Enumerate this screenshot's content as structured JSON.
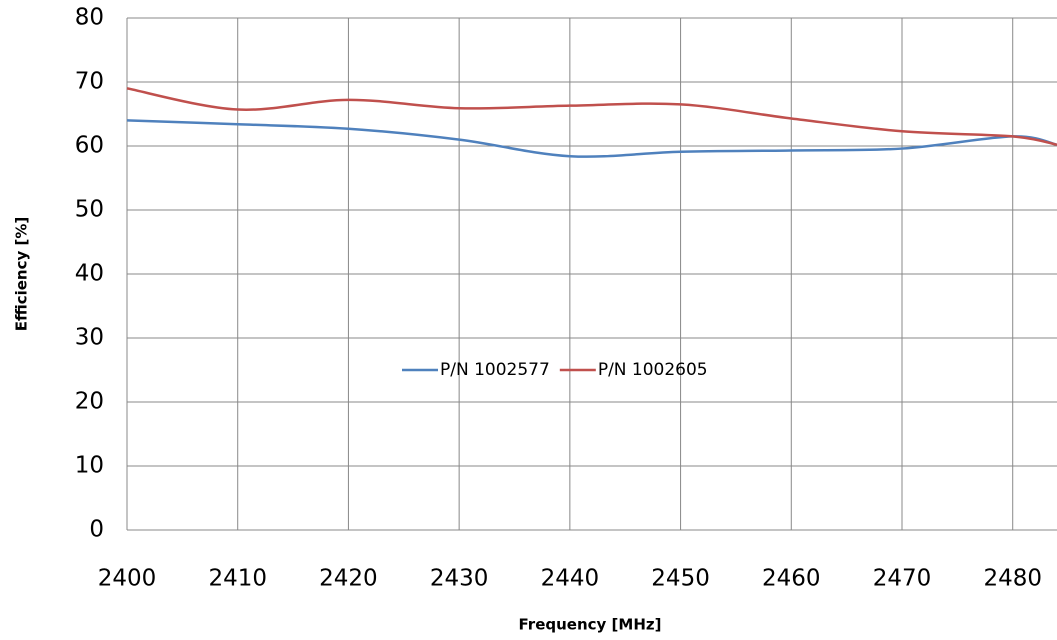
{
  "chart_data": {
    "type": "line",
    "xlabel": "Frequency [MHz]",
    "ylabel": "Efficiency [%]",
    "x": [
      2400,
      2410,
      2420,
      2430,
      2440,
      2450,
      2460,
      2470,
      2480,
      2484
    ],
    "series": [
      {
        "name": "P/N 1002577",
        "color": "#4f81bd",
        "values": [
          64,
          63.4,
          62.7,
          61,
          58.4,
          59.1,
          59.3,
          59.6,
          61.5,
          60.2
        ]
      },
      {
        "name": "P/N 1002605",
        "color": "#c0504d",
        "values": [
          69,
          65.7,
          67.2,
          65.9,
          66.3,
          66.5,
          64.3,
          62.3,
          61.5,
          60.2
        ]
      }
    ],
    "xlim": [
      2400,
      2484
    ],
    "ylim": [
      0,
      80
    ],
    "xticks": [
      2400,
      2410,
      2420,
      2430,
      2440,
      2450,
      2460,
      2470,
      2480
    ],
    "yticks": [
      0,
      10,
      20,
      30,
      40,
      50,
      60,
      70,
      80
    ],
    "grid": true,
    "legend": "center"
  }
}
